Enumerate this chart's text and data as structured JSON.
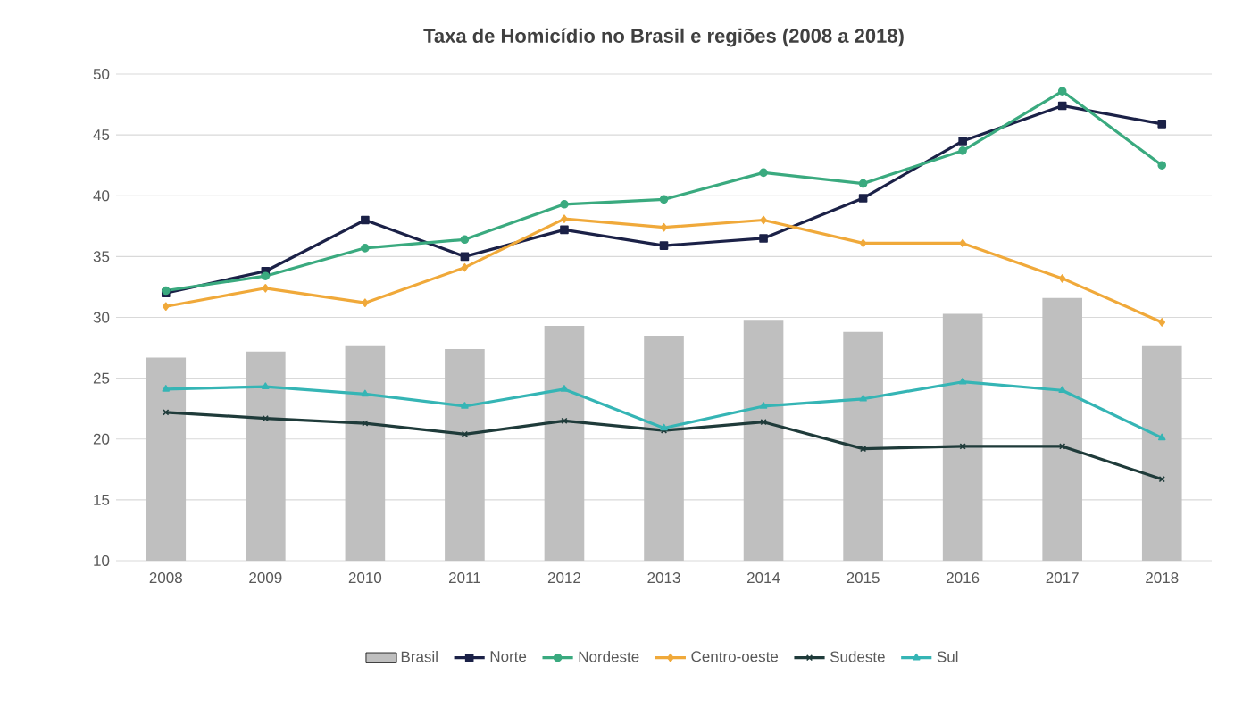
{
  "chart_data": {
    "type": "line",
    "title": "Taxa de Homicídio no Brasil e regiões (2008 a 2018)",
    "categories": [
      "2008",
      "2009",
      "2010",
      "2011",
      "2012",
      "2013",
      "2014",
      "2015",
      "2016",
      "2017",
      "2018"
    ],
    "series": [
      {
        "name": "Brasil",
        "type": "bar",
        "color": "#bfbfbf",
        "values": [
          26.7,
          27.2,
          27.7,
          27.4,
          29.3,
          28.5,
          29.8,
          28.8,
          30.3,
          31.6,
          27.7
        ]
      },
      {
        "name": "Norte",
        "marker": "square",
        "color": "#1b2147",
        "values": [
          32.0,
          33.8,
          38.0,
          35.0,
          37.2,
          35.9,
          36.5,
          39.8,
          44.5,
          47.4,
          45.9
        ]
      },
      {
        "name": "Nordeste",
        "marker": "circle",
        "color": "#3aaa7f",
        "values": [
          32.2,
          33.4,
          35.7,
          36.4,
          39.3,
          39.7,
          41.9,
          41.0,
          43.7,
          48.6,
          42.5
        ]
      },
      {
        "name": "Centro-oeste",
        "marker": "diamond",
        "color": "#f0a93a",
        "values": [
          30.9,
          32.4,
          31.2,
          34.1,
          38.1,
          37.4,
          38.0,
          36.1,
          36.1,
          33.2,
          29.6
        ]
      },
      {
        "name": "Sudeste",
        "marker": "cross",
        "color": "#1f3b3a",
        "values": [
          22.2,
          21.7,
          21.3,
          20.4,
          21.5,
          20.7,
          21.4,
          19.2,
          19.4,
          19.4,
          16.7
        ]
      },
      {
        "name": "Sul",
        "marker": "triangle",
        "color": "#35b5b5",
        "values": [
          24.1,
          24.3,
          23.7,
          22.7,
          24.1,
          20.9,
          22.7,
          23.3,
          24.7,
          24.0,
          20.1
        ]
      }
    ],
    "ylim": [
      10,
      50
    ],
    "yticks": [
      10,
      15,
      20,
      25,
      30,
      35,
      40,
      45,
      50
    ],
    "grid": "y",
    "legend": "bottom",
    "line_style": "solid"
  }
}
